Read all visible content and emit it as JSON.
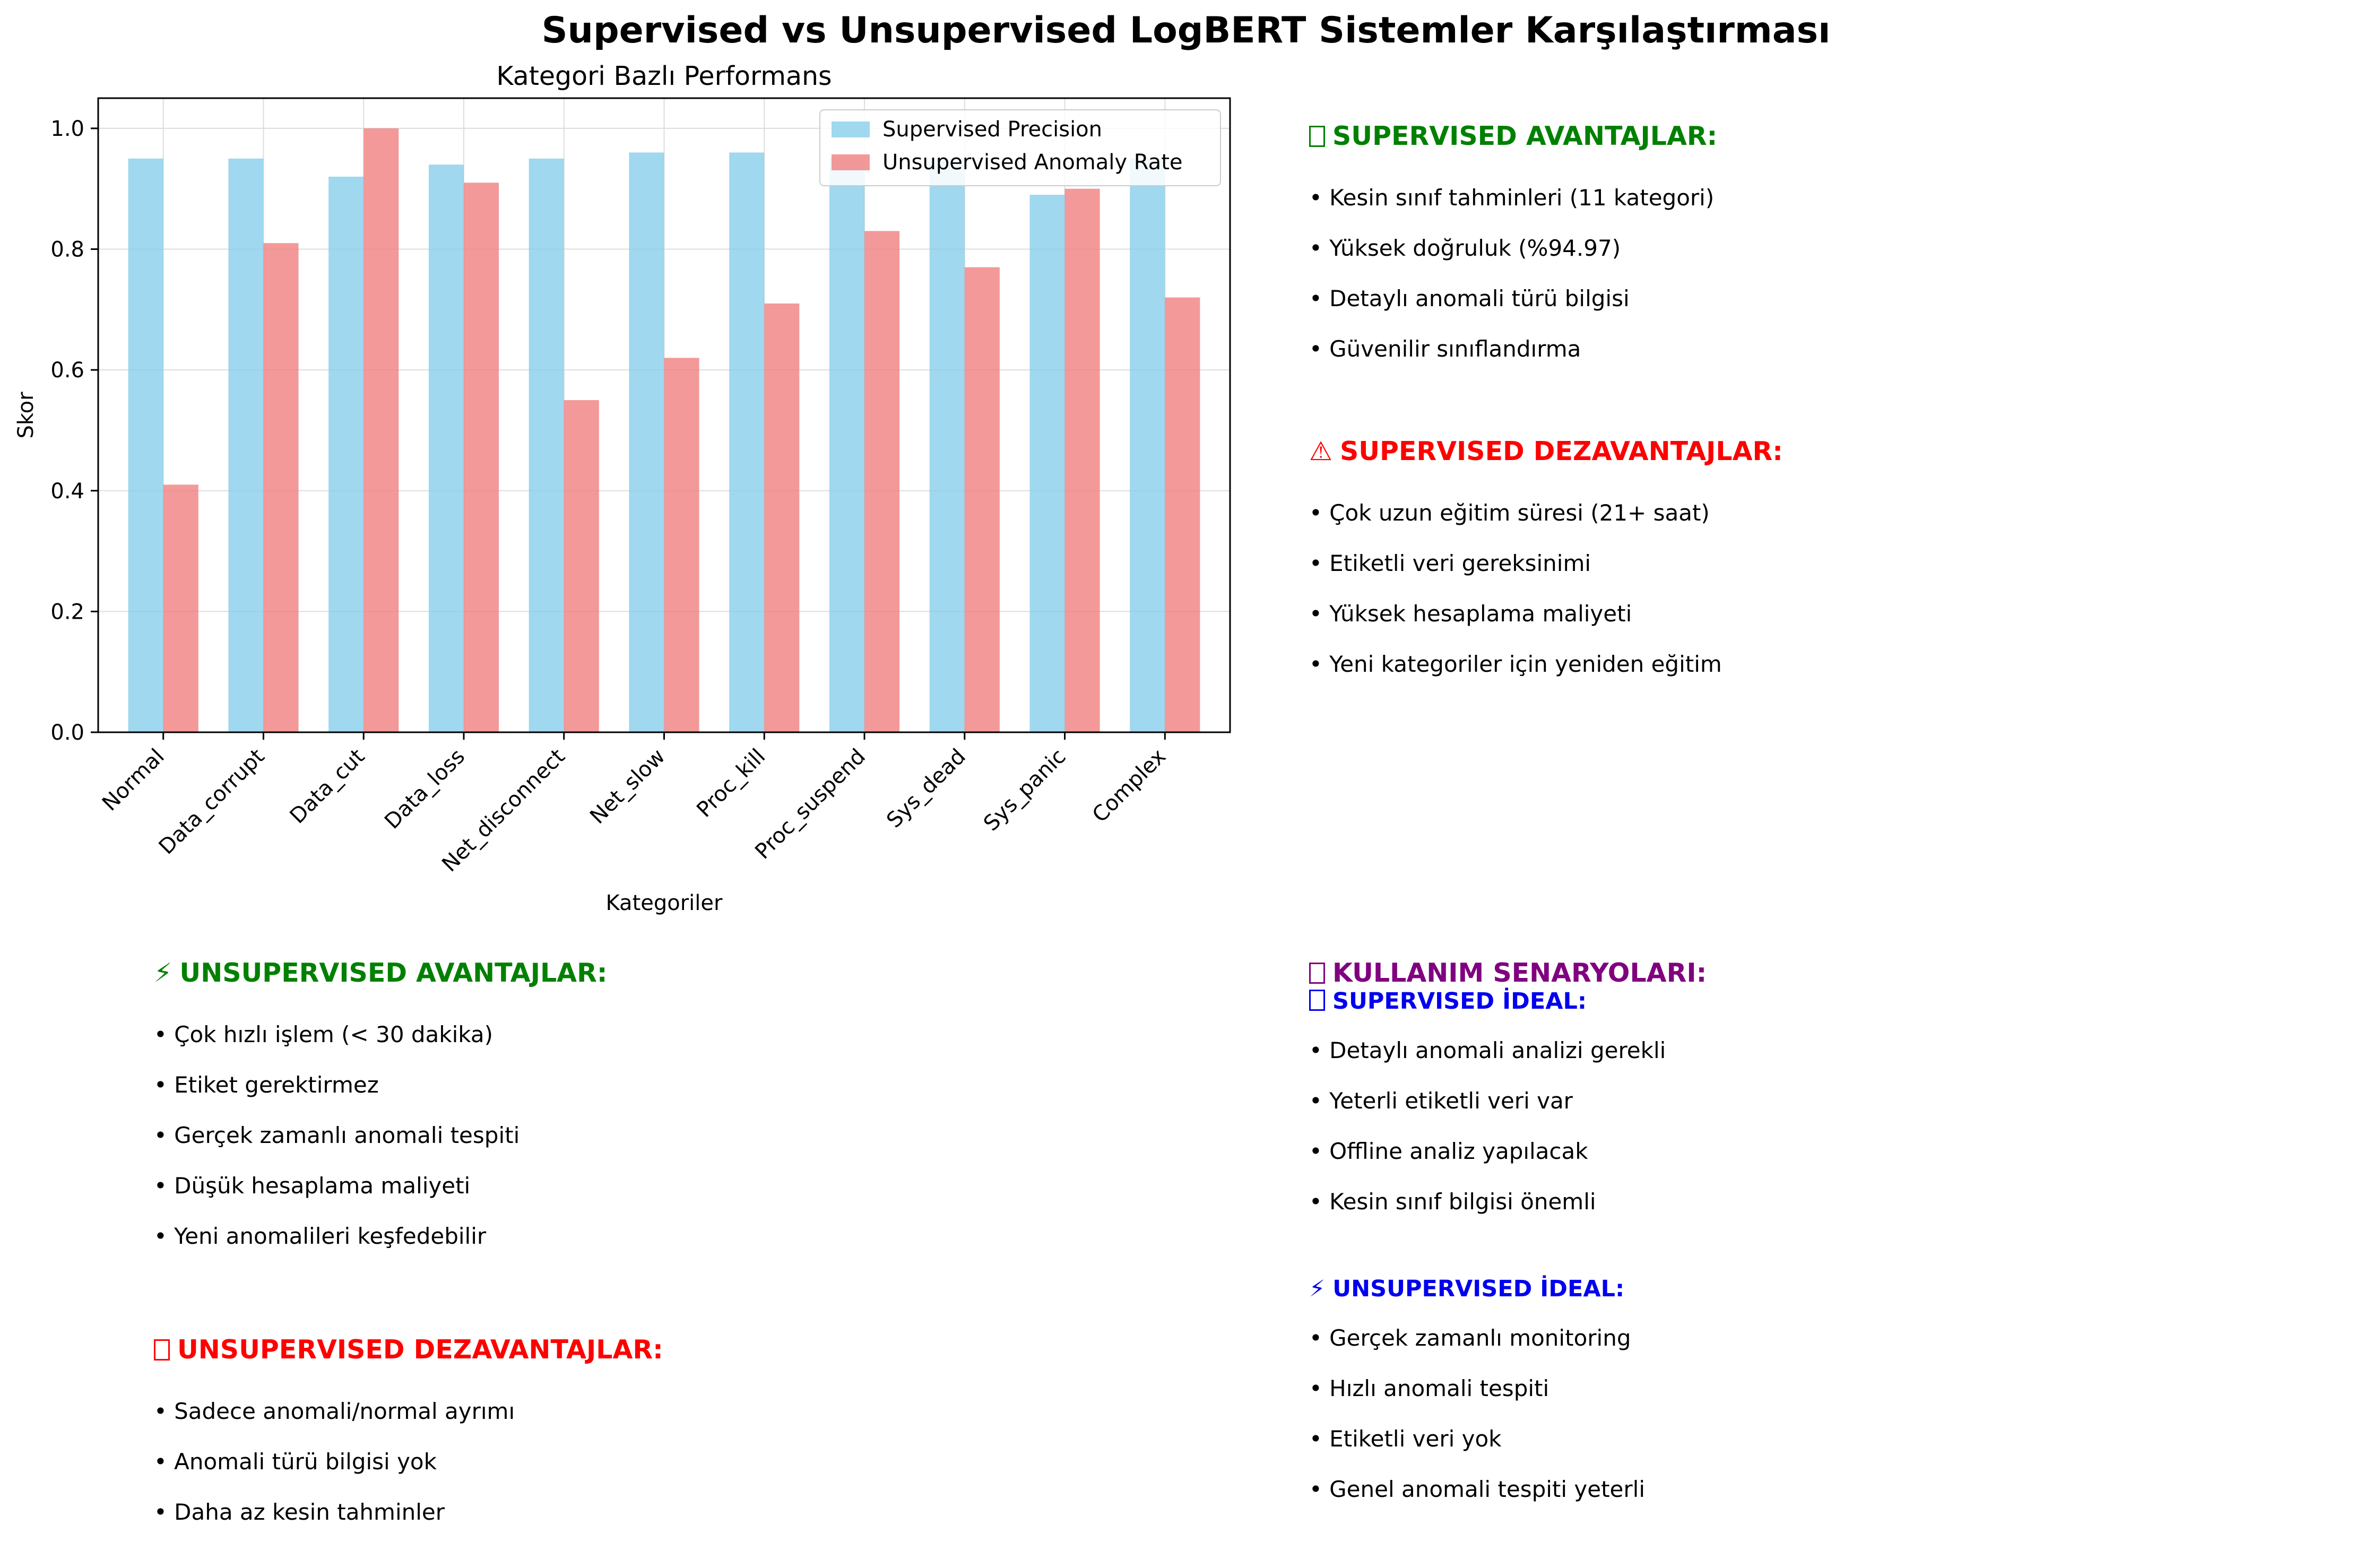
{
  "title": "Supervised vs Unsupervised LogBERT Sistemler Karşılaştırması",
  "chart_data": {
    "type": "bar",
    "title": "Kategori Bazlı Performans",
    "xlabel": "Kategoriler",
    "ylabel": "Skor",
    "categories": [
      "Normal",
      "Data_corrupt",
      "Data_cut",
      "Data_loss",
      "Net_disconnect",
      "Net_slow",
      "Proc_kill",
      "Proc_suspend",
      "Sys_dead",
      "Sys_panic",
      "Complex"
    ],
    "series": [
      {
        "name": "Supervised Precision",
        "color": "#87ceeb",
        "values": [
          0.95,
          0.95,
          0.92,
          0.94,
          0.95,
          0.96,
          0.96,
          0.95,
          0.95,
          0.89,
          0.95
        ]
      },
      {
        "name": "Unsupervised Anomaly Rate",
        "color": "#f08080",
        "values": [
          0.41,
          0.81,
          1.0,
          0.91,
          0.55,
          0.62,
          0.71,
          0.83,
          0.77,
          0.9,
          0.72
        ]
      }
    ],
    "ylim": [
      0,
      1.05
    ],
    "yticks": [
      "0.0",
      "0.2",
      "0.4",
      "0.6",
      "0.8",
      "1.0"
    ],
    "grid": true,
    "legend": "top-right"
  },
  "panels": {
    "sup_adv": {
      "icon": "missing-glyph-icon",
      "title": "SUPERVISED AVANTAJLAR:",
      "items": [
        "• Kesin sınıf tahminleri (11 kategori)",
        "• Yüksek doğruluk (%94.97)",
        "• Detaylı anomali türü bilgisi",
        "• Güvenilir sınıflandırma"
      ]
    },
    "sup_dis": {
      "icon": "warning-icon",
      "glyph": "⚠",
      "title": "SUPERVISED DEZAVANTAJLAR:",
      "items": [
        "• Çok uzun eğitim süresi (21+ saat)",
        "• Etiketli veri gereksinimi",
        "• Yüksek hesaplama maliyeti",
        "• Yeni kategoriler için yeniden eğitim"
      ]
    },
    "unsup_adv": {
      "icon": "lightning-icon",
      "glyph": "⚡",
      "title": "UNSUPERVISED AVANTAJLAR:",
      "items": [
        "• Çok hızlı işlem (< 30 dakika)",
        "• Etiket gerektirmez",
        "• Gerçek zamanlı anomali tespiti",
        "• Düşük hesaplama maliyeti",
        "• Yeni anomalileri keşfedebilir"
      ]
    },
    "unsup_dis": {
      "icon": "missing-glyph-icon",
      "title": "UNSUPERVISED DEZAVANTAJLAR:",
      "items": [
        "• Sadece anomali/normal ayrımı",
        "• Anomali türü bilgisi yok",
        "• Daha az kesin tahminler"
      ]
    },
    "usage": {
      "icon": "missing-glyph-icon",
      "title": "KULLANIM SENARYOLARI:",
      "sup_title": "SUPERVISED İDEAL:",
      "sup_items": [
        "• Detaylı anomali analizi gerekli",
        "• Yeterli etiketli veri var",
        "• Offline analiz yapılacak",
        "• Kesin sınıf bilgisi önemli"
      ],
      "unsup_glyph": "⚡",
      "unsup_title": "UNSUPERVISED İDEAL:",
      "unsup_items": [
        "• Gerçek zamanlı monitoring",
        "• Hızlı anomali tespiti",
        "• Etiketli veri yok",
        "• Genel anomali tespiti yeterli"
      ]
    }
  },
  "colors": {
    "positive": "#008000",
    "negative": "#ff0000",
    "usage": "#800080",
    "usage_sub": "#0000ee"
  }
}
